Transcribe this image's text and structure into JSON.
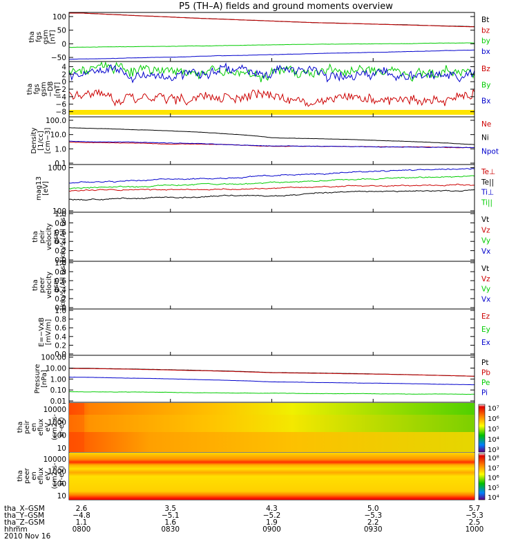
{
  "title": "P5 (TH–A) fields and ground moments overview",
  "chart_data": [
    {
      "type": "line",
      "ylabel": [
        "tha",
        "fgs",
        "gsm",
        "[nT]"
      ],
      "ylim": [
        -60,
        110
      ],
      "yticks": [
        {
          "v": 100,
          "label": "100"
        },
        {
          "v": 50,
          "label": "50"
        },
        {
          "v": 0,
          "label": "0"
        },
        {
          "v": -50,
          "label": "−50"
        }
      ],
      "series": [
        {
          "name": "Bt",
          "color": "#000000",
          "x": [
            0,
            0.07,
            0.3,
            0.6,
            1.0
          ],
          "y": [
            115,
            110,
            95,
            78,
            63
          ],
          "noise": 0.2
        },
        {
          "name": "bz",
          "color": "#cc0000",
          "x": [
            0,
            0.07,
            0.3,
            0.6,
            1.0
          ],
          "y": [
            115,
            110,
            95,
            78,
            62
          ],
          "noise": 0.2
        },
        {
          "name": "by",
          "color": "#00cc00",
          "x": [
            0,
            0.3,
            0.6,
            1.0
          ],
          "y": [
            -13,
            -8,
            -2,
            3
          ],
          "noise": 0.3
        },
        {
          "name": "bx",
          "color": "#0000cc",
          "x": [
            0,
            0.3,
            0.6,
            1.0
          ],
          "y": [
            -57,
            -47,
            -36,
            -23
          ],
          "noise": 0.3
        }
      ],
      "grid": false
    },
    {
      "type": "line",
      "ylabel": [
        "tha",
        "fgs",
        "gsm",
        "−DB",
        "[nT]"
      ],
      "ylim": [
        -9,
        5
      ],
      "yticks": [
        {
          "v": 4,
          "label": "4"
        },
        {
          "v": 2,
          "label": "2"
        },
        {
          "v": 0,
          "label": "0"
        },
        {
          "v": -2,
          "label": "−2"
        },
        {
          "v": -4,
          "label": "−4"
        },
        {
          "v": -6,
          "label": "−6"
        },
        {
          "v": -8,
          "label": "−8"
        }
      ],
      "series": [
        {
          "name": "Bz",
          "color": "#cc0000",
          "x": [
            0,
            0.25,
            0.5,
            0.75,
            1.0
          ],
          "y": [
            -4,
            -4,
            -4.5,
            -5,
            -4
          ],
          "noise": 0.8
        },
        {
          "name": "By",
          "color": "#00cc00",
          "x": [
            0,
            0.25,
            0.5,
            0.75,
            1.0
          ],
          "y": [
            3,
            3,
            2.5,
            3,
            3
          ],
          "noise": 0.8
        },
        {
          "name": "Bx",
          "color": "#0000cc",
          "x": [
            0,
            0.25,
            0.5,
            0.75,
            1.0
          ],
          "y": [
            2,
            2,
            2,
            1,
            2
          ],
          "noise": 0.8
        }
      ],
      "grid": false
    },
    {
      "type": "line",
      "ylabel": [
        "Density",
        "[1/cc]",
        "[cm−3]"
      ],
      "scale": "log",
      "ylim": [
        0.1,
        140
      ],
      "yticks": [
        {
          "v": 100,
          "label": "100.0"
        },
        {
          "v": 10,
          "label": "10.0"
        },
        {
          "v": 1,
          "label": "1.0"
        },
        {
          "v": 0.1,
          "label": "0.1"
        }
      ],
      "series": [
        {
          "name": "Ne",
          "color": "#cc0000",
          "x": [
            0,
            0.5,
            1.0
          ],
          "y": [
            3,
            1.6,
            1.2
          ],
          "noise": 0.04
        },
        {
          "name": "Ni",
          "color": "#000000",
          "x": [
            0,
            0.5,
            1.0
          ],
          "y": [
            30,
            6,
            2
          ],
          "noise": 0.02
        },
        {
          "name": "Npot",
          "color": "#0000cc",
          "x": [
            0,
            0.5,
            1.0
          ],
          "y": [
            3.5,
            1.6,
            1.2
          ],
          "noise": 0.04
        }
      ],
      "grid": false
    },
    {
      "type": "line",
      "ylabel": [
        "mag13",
        "[eV]"
      ],
      "scale": "log",
      "ylim": [
        100,
        1100
      ],
      "yticks": [
        {
          "v": 1000,
          "label": "1000"
        },
        {
          "v": 100,
          "label": "100"
        }
      ],
      "series": [
        {
          "name": "Te⊥",
          "color": "#cc0000",
          "x": [
            0,
            0.5,
            0.68,
            1.0
          ],
          "y": [
            290,
            330,
            380,
            410
          ],
          "noise": 0.03
        },
        {
          "name": "Te||",
          "color": "#000000",
          "x": [
            0,
            0.5,
            0.68,
            1.0
          ],
          "y": [
            180,
            230,
            280,
            300
          ],
          "noise": 0.03
        },
        {
          "name": "Ti⊥",
          "color": "#0000cc",
          "x": [
            0,
            0.5,
            1.0
          ],
          "y": [
            440,
            650,
            950
          ],
          "noise": 0.03
        },
        {
          "name": "Ti||",
          "color": "#00cc00",
          "x": [
            0,
            0.5,
            1.0
          ],
          "y": [
            330,
            450,
            640
          ],
          "noise": 0.03
        }
      ],
      "grid": false
    },
    {
      "type": "line",
      "ylabel": [
        "tha",
        "peir",
        "velocity",
        "gsm",
        "[km/s (All Qs)]"
      ],
      "ylim": [
        0,
        1
      ],
      "yticks": [
        {
          "v": 1,
          "label": "1.0"
        },
        {
          "v": 0.8,
          "label": "0.8"
        },
        {
          "v": 0.6,
          "label": "0.6"
        },
        {
          "v": 0.4,
          "label": "0.4"
        },
        {
          "v": 0.2,
          "label": "0.2"
        },
        {
          "v": 0,
          "label": "0.0"
        }
      ],
      "series": [
        {
          "name": "Vt",
          "color": "#000000"
        },
        {
          "name": "Vz",
          "color": "#cc0000"
        },
        {
          "name": "Vy",
          "color": "#00cc00"
        },
        {
          "name": "Vx",
          "color": "#0000cc"
        }
      ],
      "grid": false
    },
    {
      "type": "line",
      "ylabel": [
        "tha",
        "peer",
        "velocity",
        "gsm",
        "[km/s (All Qs)]"
      ],
      "ylim": [
        0,
        1
      ],
      "yticks": [
        {
          "v": 1,
          "label": "1.0"
        },
        {
          "v": 0.8,
          "label": "0.8"
        },
        {
          "v": 0.6,
          "label": "0.6"
        },
        {
          "v": 0.4,
          "label": "0.4"
        },
        {
          "v": 0.2,
          "label": "0.2"
        },
        {
          "v": 0,
          "label": "0.0"
        }
      ],
      "series": [
        {
          "name": "Vt",
          "color": "#000000"
        },
        {
          "name": "Vz",
          "color": "#cc0000"
        },
        {
          "name": "Vy",
          "color": "#00cc00"
        },
        {
          "name": "Vx",
          "color": "#0000cc"
        }
      ],
      "grid": false
    },
    {
      "type": "line",
      "ylabel": [
        "E=−VxB",
        "[mV/m]"
      ],
      "ylim": [
        0,
        1
      ],
      "yticks": [
        {
          "v": 1,
          "label": "1.0"
        },
        {
          "v": 0.8,
          "label": "0.8"
        },
        {
          "v": 0.6,
          "label": "0.6"
        },
        {
          "v": 0.4,
          "label": "0.4"
        },
        {
          "v": 0.2,
          "label": "0.2"
        },
        {
          "v": 0,
          "label": "0.0"
        }
      ],
      "series": [
        {
          "name": "Ez",
          "color": "#cc0000"
        },
        {
          "name": "Ey",
          "color": "#00cc00"
        },
        {
          "name": "Ex",
          "color": "#0000cc"
        }
      ],
      "grid": false
    },
    {
      "type": "line",
      "ylabel": [
        "Pressure",
        "[nPa]"
      ],
      "scale": "log",
      "ylim": [
        0.01,
        110
      ],
      "yticks": [
        {
          "v": 100,
          "label": "100.00"
        },
        {
          "v": 10,
          "label": "10.00"
        },
        {
          "v": 1,
          "label": "1.00"
        },
        {
          "v": 0.1,
          "label": "0.10"
        },
        {
          "v": 0.01,
          "label": "0.01"
        }
      ],
      "series": [
        {
          "name": "Pt",
          "color": "#000000",
          "x": [
            0,
            0.5,
            1.0
          ],
          "y": [
            10,
            4,
            1.8
          ],
          "noise": 0.015
        },
        {
          "name": "Pb",
          "color": "#cc0000",
          "x": [
            0,
            0.5,
            1.0
          ],
          "y": [
            9.5,
            3.8,
            1.8
          ],
          "noise": 0.015
        },
        {
          "name": "Pe",
          "color": "#00cc00",
          "x": [
            0,
            0.5,
            1.0
          ],
          "y": [
            0.07,
            0.05,
            0.04
          ],
          "noise": 0.03
        },
        {
          "name": "Pi",
          "color": "#0000cc",
          "x": [
            0,
            0.5,
            1.0
          ],
          "y": [
            1.5,
            0.55,
            0.3
          ],
          "noise": 0.02
        }
      ],
      "grid": false
    },
    {
      "type": "heatmap",
      "ylabel": [
        "tha",
        "peir",
        "en",
        "eflux",
        "eV",
        "(cm2-s-",
        "sr-eV)"
      ],
      "yticks": [
        "10000",
        "1000",
        "100",
        "10"
      ],
      "colorbar": [
        "10⁷",
        "10⁶",
        "10⁵",
        "10⁴",
        "10³"
      ],
      "values": "spectrogram: orange/red at t=0 fading to yellow, then green above 1000 eV after 0900; yellow at low energies"
    },
    {
      "type": "heatmap",
      "ylabel": [
        "tha",
        "peer",
        "en",
        "eflux",
        "eV",
        "(cm2-s-",
        "sr-eV)"
      ],
      "yticks": [
        "10000",
        "1000",
        "100",
        "10"
      ],
      "colorbar": [
        "10⁸",
        "10⁷",
        "10⁶",
        "10⁵",
        "10⁴"
      ],
      "values": "spectrogram: red band near 5000 eV and below 15 eV, orange at 2000 eV, yellow elsewhere"
    }
  ],
  "colors": {
    "bt": "#000000",
    "red": "#cc0000",
    "green": "#00cc00",
    "blue": "#0000cc",
    "shading": "#ffe400"
  },
  "xaxis": {
    "row_labels": [
      "tha_X–GSM",
      "tha_Y–GSM",
      "tha_Z–GSM",
      "hhmm",
      "2010 Nov 16"
    ],
    "columns": [
      {
        "x": 2.6,
        "y": "−4.8",
        "z": "1.1",
        "t": "0800"
      },
      {
        "x": 3.5,
        "y": "−5.1",
        "z": "1.6",
        "t": "0830"
      },
      {
        "x": 4.3,
        "y": "−5.2",
        "z": "1.9",
        "t": "0900"
      },
      {
        "x": 5.0,
        "y": "−5.3",
        "z": "2.2",
        "t": "0930"
      },
      {
        "x": 5.7,
        "y": "−5.3",
        "z": "2.5",
        "t": "1000"
      }
    ]
  }
}
